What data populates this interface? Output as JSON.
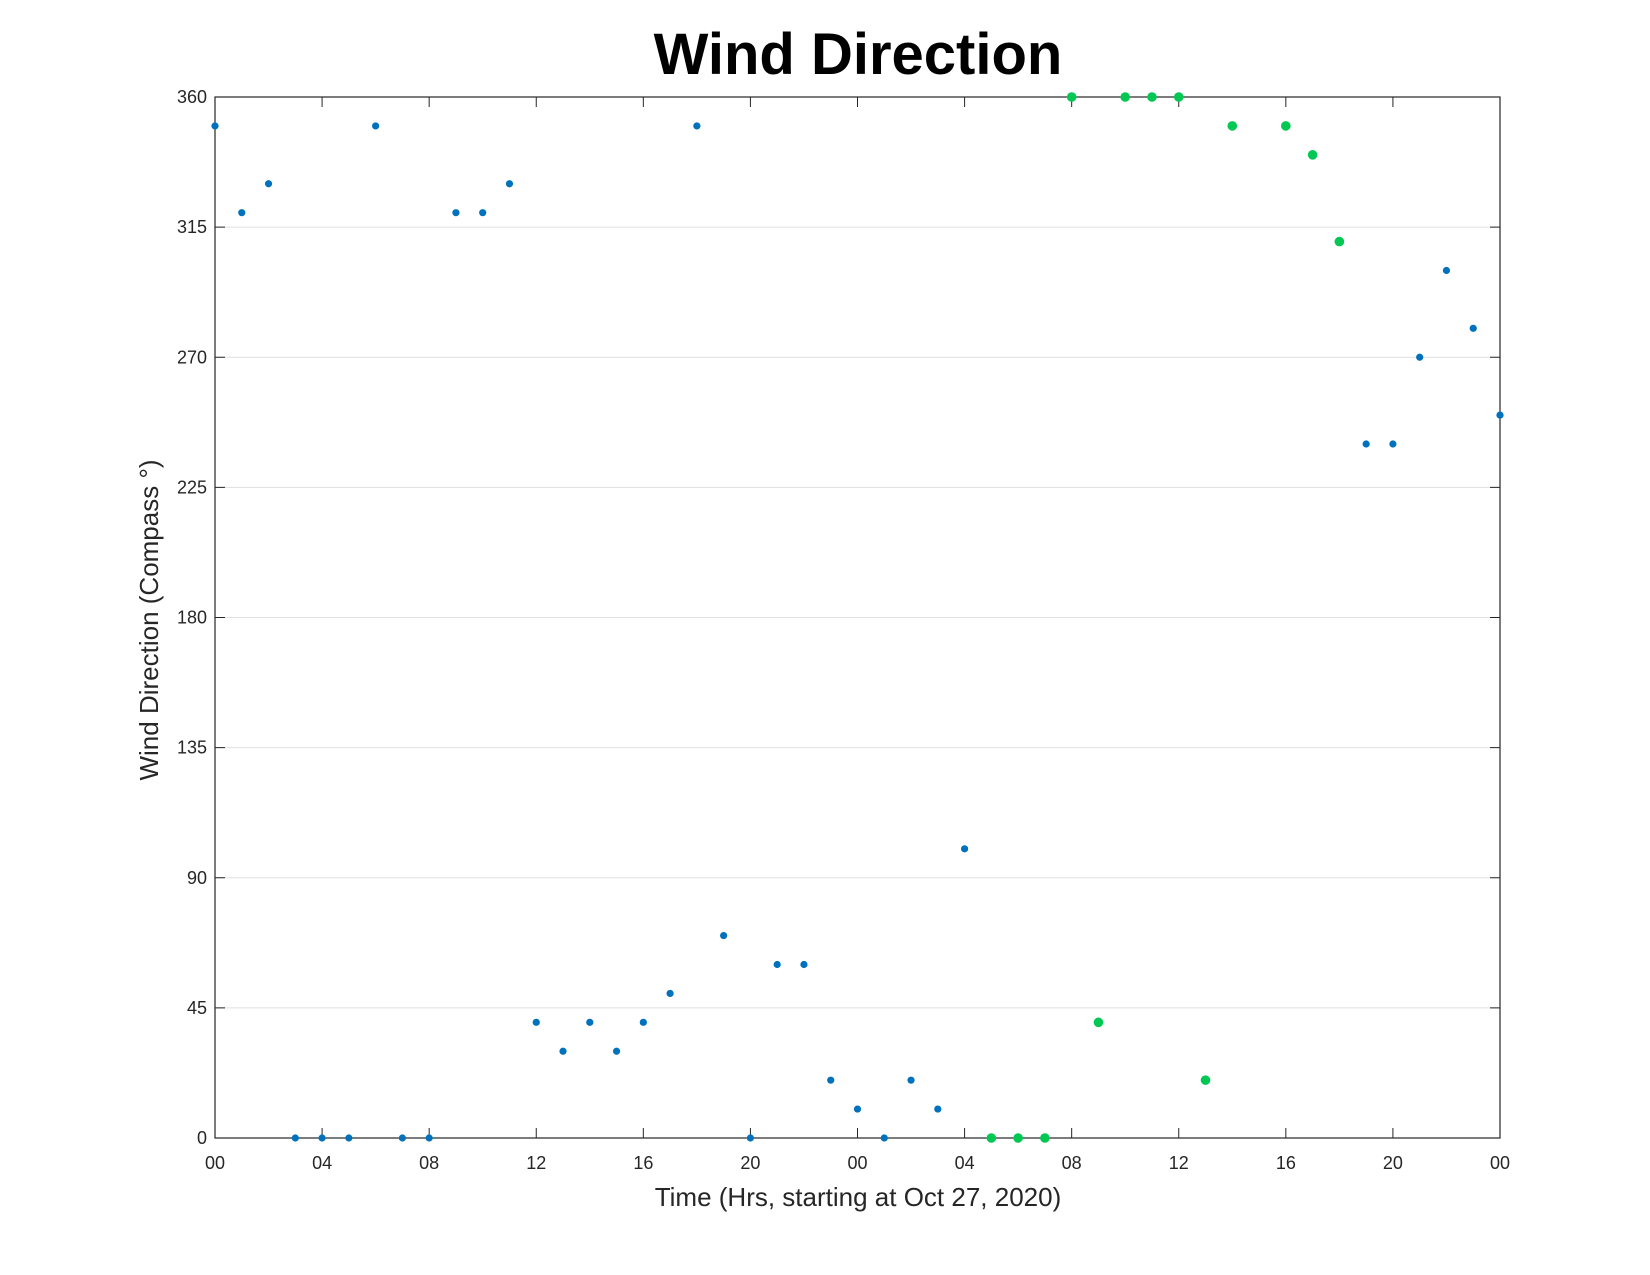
{
  "chart_data": {
    "type": "scatter",
    "title": "Wind Direction",
    "xlabel": "Time (Hrs, starting at Oct 27, 2020)",
    "ylabel": "Wind Direction (Compass °)",
    "xlim": [
      "2020-10-27 00:00",
      "2020-10-29 00:00"
    ],
    "ylim": [
      0,
      360
    ],
    "yticks": [
      0,
      45,
      90,
      135,
      180,
      225,
      270,
      315,
      360
    ],
    "xticks": [
      {
        "t": "2020-10-27 00:00",
        "label": "00"
      },
      {
        "t": "2020-10-27 04:00",
        "label": "04"
      },
      {
        "t": "2020-10-27 08:00",
        "label": "08"
      },
      {
        "t": "2020-10-27 12:00",
        "label": "12"
      },
      {
        "t": "2020-10-27 16:00",
        "label": "16"
      },
      {
        "t": "2020-10-27 20:00",
        "label": "20"
      },
      {
        "t": "2020-10-28 00:00",
        "label": "00"
      },
      {
        "t": "2020-10-28 04:00",
        "label": "04"
      },
      {
        "t": "2020-10-28 08:00",
        "label": "08"
      },
      {
        "t": "2020-10-28 12:00",
        "label": "12"
      },
      {
        "t": "2020-10-28 16:00",
        "label": "16"
      },
      {
        "t": "2020-10-28 20:00",
        "label": "20"
      },
      {
        "t": "2020-10-29 00:00",
        "label": "00"
      }
    ],
    "grid": "horizontal",
    "series": [
      {
        "color": "#0072bd",
        "points": [
          [
            "2020-10-27 00:00",
            350
          ],
          [
            "2020-10-27 01:00",
            320
          ],
          [
            "2020-10-27 02:00",
            330
          ],
          [
            "2020-10-27 03:00",
            0
          ],
          [
            "2020-10-27 04:00",
            0
          ],
          [
            "2020-10-27 05:00",
            0
          ],
          [
            "2020-10-27 06:00",
            350
          ],
          [
            "2020-10-27 07:00",
            0
          ],
          [
            "2020-10-27 08:00",
            0
          ],
          [
            "2020-10-27 09:00",
            320
          ],
          [
            "2020-10-27 10:00",
            320
          ],
          [
            "2020-10-27 11:00",
            330
          ],
          [
            "2020-10-27 12:00",
            40
          ],
          [
            "2020-10-27 13:00",
            30
          ],
          [
            "2020-10-27 14:00",
            40
          ],
          [
            "2020-10-27 15:00",
            30
          ],
          [
            "2020-10-27 16:00",
            40
          ],
          [
            "2020-10-27 17:00",
            50
          ],
          [
            "2020-10-27 18:00",
            350
          ],
          [
            "2020-10-27 19:00",
            70
          ],
          [
            "2020-10-27 20:00",
            0
          ],
          [
            "2020-10-27 21:00",
            60
          ],
          [
            "2020-10-27 22:00",
            60
          ],
          [
            "2020-10-27 23:00",
            20
          ],
          [
            "2020-10-28 00:00",
            10
          ],
          [
            "2020-10-28 01:00",
            0
          ],
          [
            "2020-10-28 02:00",
            20
          ],
          [
            "2020-10-28 03:00",
            10
          ],
          [
            "2020-10-28 04:00",
            100
          ],
          [
            "2020-10-28 19:00",
            240
          ],
          [
            "2020-10-28 20:00",
            240
          ],
          [
            "2020-10-28 21:00",
            270
          ],
          [
            "2020-10-28 22:00",
            300
          ],
          [
            "2020-10-28 23:00",
            280
          ],
          [
            "2020-10-29 00:00",
            250
          ]
        ]
      },
      {
        "color": "#00c853",
        "points": [
          [
            "2020-10-28 05:00",
            0
          ],
          [
            "2020-10-28 06:00",
            0
          ],
          [
            "2020-10-28 07:00",
            0
          ],
          [
            "2020-10-28 08:00",
            360
          ],
          [
            "2020-10-28 09:00",
            40
          ],
          [
            "2020-10-28 10:00",
            360
          ],
          [
            "2020-10-28 11:00",
            360
          ],
          [
            "2020-10-28 12:00",
            360
          ],
          [
            "2020-10-28 13:00",
            20
          ],
          [
            "2020-10-28 14:00",
            350
          ],
          [
            "2020-10-28 16:00",
            350
          ],
          [
            "2020-10-28 17:00",
            340
          ],
          [
            "2020-10-28 18:00",
            310
          ]
        ]
      }
    ]
  }
}
